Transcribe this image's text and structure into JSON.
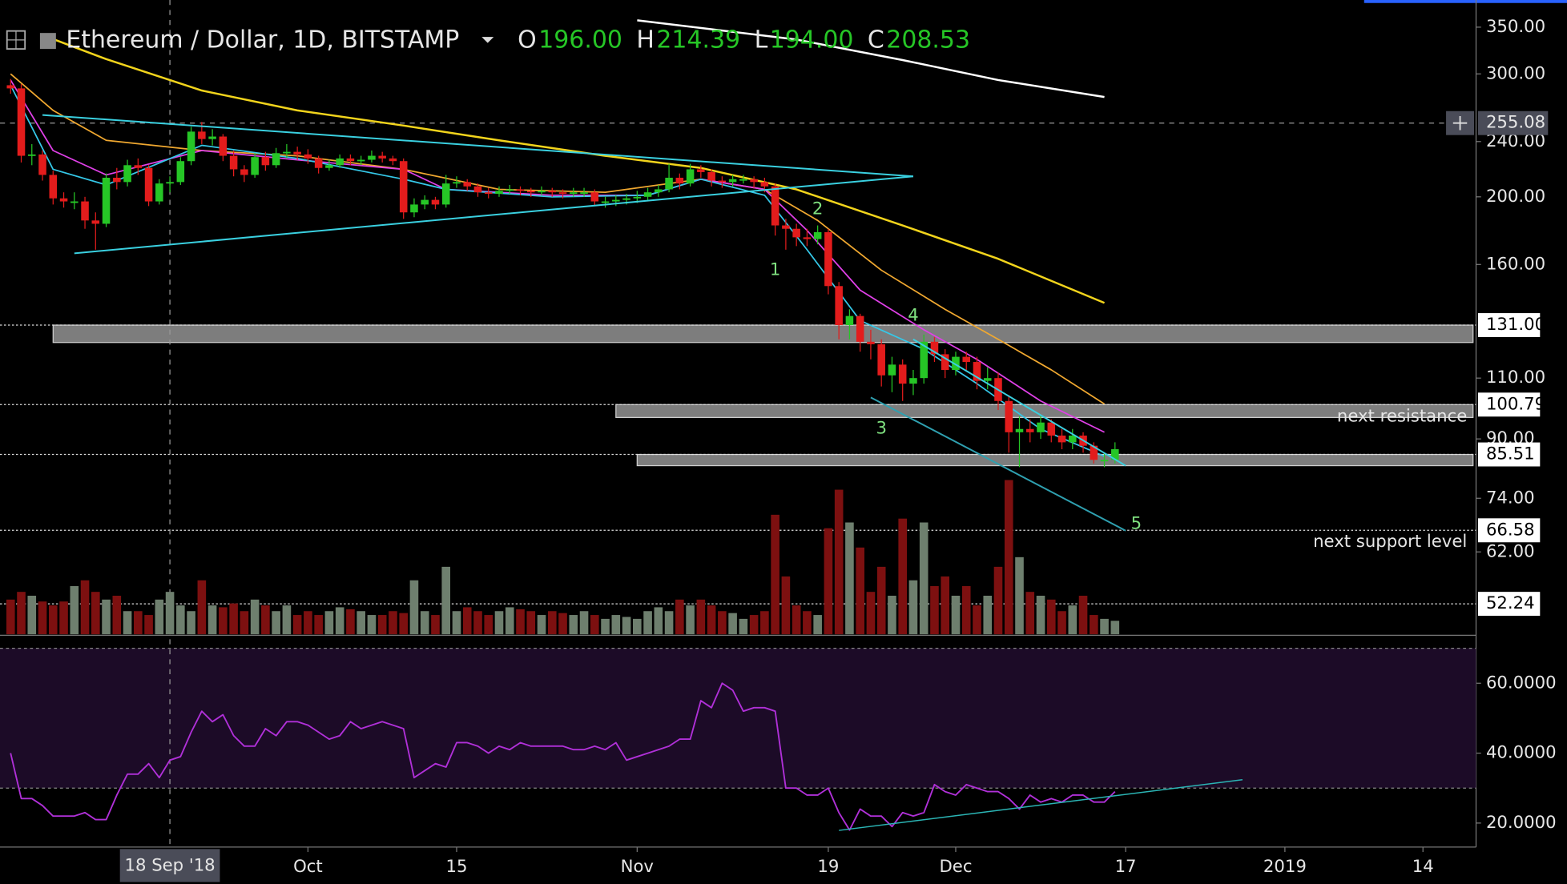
{
  "chart_data": {
    "type": "candlestick",
    "title": "Ethereum / Dollar, 1D, BITSTAMP",
    "ohlc": [
      {
        "key": "O",
        "text": "196.00"
      },
      {
        "key": "H",
        "text": "214.39"
      },
      {
        "key": "L",
        "text": "194.00"
      },
      {
        "key": "C",
        "text": "208.53"
      }
    ],
    "log_scale": true,
    "xlim": [
      "2018-09-02",
      "2019-01-19"
    ],
    "xticks": [
      {
        "value": "2018-10-01",
        "label": "Oct"
      },
      {
        "value": "2018-10-15",
        "label": "15"
      },
      {
        "value": "2018-11-01",
        "label": "Nov"
      },
      {
        "value": "2018-11-19",
        "label": "19"
      },
      {
        "value": "2018-12-01",
        "label": "Dec"
      },
      {
        "value": "2018-12-17",
        "label": "17"
      },
      {
        "value": "2019-01-01",
        "label": "2019"
      },
      {
        "value": "2019-01-14",
        "label": "14"
      }
    ],
    "ylim": [
      47.25,
      370.4
    ],
    "yticks": [
      {
        "value": 350,
        "label": "350.00"
      },
      {
        "value": 300,
        "label": "300.00"
      },
      {
        "value": 240,
        "label": "240.00"
      },
      {
        "value": 200,
        "label": "200.00"
      },
      {
        "value": 160,
        "label": "160.00"
      },
      {
        "value": 110,
        "label": "110.00"
      },
      {
        "value": 90,
        "label": "90.00"
      },
      {
        "value": 74,
        "label": "74.00"
      },
      {
        "value": 62,
        "label": "62.00"
      }
    ],
    "x": [
      "2018-09-03",
      "2018-09-04",
      "2018-09-05",
      "2018-09-06",
      "2018-09-07",
      "2018-09-08",
      "2018-09-09",
      "2018-09-10",
      "2018-09-11",
      "2018-09-12",
      "2018-09-13",
      "2018-09-14",
      "2018-09-15",
      "2018-09-16",
      "2018-09-17",
      "2018-09-18",
      "2018-09-19",
      "2018-09-20",
      "2018-09-21",
      "2018-09-22",
      "2018-09-23",
      "2018-09-24",
      "2018-09-25",
      "2018-09-26",
      "2018-09-27",
      "2018-09-28",
      "2018-09-29",
      "2018-09-30",
      "2018-10-01",
      "2018-10-02",
      "2018-10-03",
      "2018-10-04",
      "2018-10-05",
      "2018-10-06",
      "2018-10-07",
      "2018-10-08",
      "2018-10-09",
      "2018-10-10",
      "2018-10-11",
      "2018-10-12",
      "2018-10-13",
      "2018-10-14",
      "2018-10-15",
      "2018-10-16",
      "2018-10-17",
      "2018-10-18",
      "2018-10-19",
      "2018-10-20",
      "2018-10-21",
      "2018-10-22",
      "2018-10-23",
      "2018-10-24",
      "2018-10-25",
      "2018-10-26",
      "2018-10-27",
      "2018-10-28",
      "2018-10-29",
      "2018-10-30",
      "2018-10-31",
      "2018-11-01",
      "2018-11-02",
      "2018-11-03",
      "2018-11-04",
      "2018-11-05",
      "2018-11-06",
      "2018-11-07",
      "2018-11-08",
      "2018-11-09",
      "2018-11-10",
      "2018-11-11",
      "2018-11-12",
      "2018-11-13",
      "2018-11-14",
      "2018-11-15",
      "2018-11-16",
      "2018-11-17",
      "2018-11-18",
      "2018-11-19",
      "2018-11-20",
      "2018-11-21",
      "2018-11-22",
      "2018-11-23",
      "2018-11-24",
      "2018-11-25",
      "2018-11-26",
      "2018-11-27",
      "2018-11-28",
      "2018-11-29",
      "2018-11-30",
      "2018-12-01",
      "2018-12-02",
      "2018-12-03",
      "2018-12-04",
      "2018-12-05",
      "2018-12-06",
      "2018-12-07",
      "2018-12-08",
      "2018-12-09",
      "2018-12-10",
      "2018-12-11",
      "2018-12-12",
      "2018-12-13",
      "2018-12-14",
      "2018-12-15",
      "2018-12-16"
    ],
    "open": [
      289,
      286,
      229,
      230,
      215,
      199,
      197,
      197,
      185,
      183,
      213,
      210,
      222,
      220,
      197,
      209,
      210,
      225,
      248,
      242,
      244,
      229,
      219,
      215,
      228,
      222,
      231,
      232,
      230,
      227,
      220,
      222,
      227,
      225,
      226,
      229,
      227,
      225,
      190,
      195,
      198,
      195,
      209,
      210,
      207,
      203,
      202,
      204,
      205,
      204,
      203,
      204,
      203,
      202,
      203,
      203,
      197,
      197,
      198,
      199,
      200,
      203,
      205,
      213,
      209,
      219,
      217,
      211,
      210,
      212,
      212,
      210,
      207,
      182,
      180,
      175,
      174,
      178,
      149,
      131,
      135,
      124,
      123,
      111,
      115,
      108,
      110,
      124,
      119,
      113,
      118,
      116,
      109,
      110,
      102,
      92,
      93,
      92,
      95,
      91,
      89,
      91,
      88,
      84,
      84
    ],
    "high": [
      295,
      290,
      238,
      233,
      218,
      203,
      203,
      200,
      190,
      216,
      220,
      226,
      227,
      222,
      212,
      214,
      228,
      252,
      256,
      250,
      246,
      233,
      222,
      231,
      232,
      235,
      238,
      236,
      234,
      229,
      226,
      230,
      230,
      229,
      233,
      232,
      229,
      227,
      199,
      201,
      200,
      215,
      214,
      212,
      209,
      206,
      207,
      208,
      207,
      206,
      207,
      206,
      205,
      206,
      206,
      205,
      200,
      201,
      202,
      204,
      206,
      208,
      223,
      216,
      223,
      222,
      219,
      214,
      215,
      215,
      214,
      213,
      209,
      186,
      183,
      180,
      182,
      180,
      151,
      138,
      136,
      129,
      125,
      118,
      117,
      113,
      127,
      126,
      121,
      120,
      120,
      118,
      114,
      112,
      104,
      97,
      96,
      97,
      96,
      93,
      93,
      92,
      89,
      86,
      89
    ],
    "low": [
      281,
      224,
      222,
      211,
      195,
      193,
      192,
      180,
      168,
      181,
      205,
      207,
      215,
      194,
      195,
      203,
      208,
      222,
      238,
      237,
      225,
      214,
      210,
      213,
      218,
      220,
      227,
      226,
      223,
      216,
      218,
      220,
      222,
      222,
      224,
      224,
      222,
      186,
      187,
      192,
      192,
      193,
      206,
      204,
      200,
      199,
      200,
      202,
      201,
      200,
      201,
      200,
      199,
      200,
      200,
      194,
      193,
      194,
      195,
      196,
      198,
      200,
      203,
      205,
      207,
      213,
      207,
      206,
      207,
      209,
      206,
      203,
      176,
      168,
      170,
      170,
      171,
      145,
      125,
      125,
      120,
      117,
      107,
      105,
      102,
      104,
      108,
      116,
      110,
      111,
      113,
      106,
      106,
      99,
      86,
      82,
      89,
      90,
      89,
      87,
      87,
      86,
      83,
      82,
      83
    ],
    "close": [
      286,
      229,
      230,
      215,
      199,
      197,
      197,
      185,
      183,
      213,
      210,
      222,
      220,
      197,
      209,
      210,
      225,
      248,
      242,
      244,
      229,
      219,
      215,
      228,
      222,
      231,
      232,
      230,
      227,
      220,
      222,
      227,
      225,
      226,
      229,
      227,
      225,
      190,
      195,
      198,
      195,
      209,
      210,
      207,
      203,
      202,
      204,
      205,
      204,
      203,
      204,
      203,
      202,
      203,
      203,
      197,
      197,
      198,
      199,
      200,
      203,
      205,
      213,
      209,
      219,
      217,
      211,
      210,
      212,
      212,
      210,
      207,
      182,
      180,
      175,
      174,
      178,
      149,
      131,
      135,
      124,
      123,
      111,
      115,
      108,
      110,
      124,
      119,
      113,
      118,
      116,
      109,
      110,
      102,
      92,
      93,
      92,
      95,
      91,
      89,
      91,
      88,
      84,
      84,
      87
    ],
    "up_color": "#26c626",
    "down_color": "#e31c1c",
    "volume": {
      "vlim": [
        0,
        100
      ],
      "up_color": "#6e7f6e",
      "down_color": "#7d1010",
      "values": [
        18,
        22,
        20,
        17,
        15,
        17,
        25,
        28,
        22,
        18,
        20,
        12,
        12,
        10,
        18,
        22,
        15,
        12,
        28,
        15,
        14,
        16,
        12,
        18,
        15,
        12,
        15,
        10,
        12,
        10,
        12,
        14,
        13,
        12,
        10,
        10,
        12,
        11,
        28,
        12,
        10,
        35,
        12,
        14,
        12,
        10,
        12,
        14,
        13,
        12,
        10,
        12,
        11,
        10,
        12,
        10,
        8,
        10,
        9,
        8,
        12,
        14,
        12,
        18,
        15,
        18,
        15,
        12,
        11,
        8,
        10,
        12,
        62,
        30,
        15,
        12,
        10,
        55,
        75,
        58,
        45,
        22,
        35,
        20,
        60,
        28,
        58,
        25,
        30,
        20,
        25,
        15,
        20,
        35,
        80,
        40,
        22,
        20,
        18,
        12,
        15,
        20,
        10,
        8,
        7
      ]
    },
    "moving_averages": [
      {
        "color": "#ffffff",
        "x": [
          "2018-11-01",
          "2018-11-16",
          "2018-11-26",
          "2018-12-05",
          "2018-12-15"
        ],
        "values": [
          358,
          336,
          314,
          294,
          278
        ]
      },
      {
        "color": "#f2d41c",
        "x": [
          "2018-09-06",
          "2018-09-12",
          "2018-09-21",
          "2018-09-30",
          "2018-10-10",
          "2018-10-19",
          "2018-10-29",
          "2018-11-07",
          "2018-11-16",
          "2018-11-26",
          "2018-12-05",
          "2018-12-15"
        ],
        "values": [
          341,
          315,
          284,
          266,
          253,
          241,
          229,
          220,
          205,
          182,
          163,
          141
        ]
      },
      {
        "color": "#f0a830",
        "x": [
          "2018-09-03",
          "2018-09-07",
          "2018-09-12",
          "2018-09-21",
          "2018-09-30",
          "2018-10-10",
          "2018-10-19",
          "2018-10-29",
          "2018-11-07",
          "2018-11-13",
          "2018-11-18",
          "2018-11-24",
          "2018-11-30",
          "2018-12-05",
          "2018-12-10",
          "2018-12-15"
        ],
        "values": [
          300,
          266,
          241,
          233,
          229,
          219,
          205,
          203,
          212,
          205,
          185,
          157,
          138,
          125,
          113,
          101
        ]
      },
      {
        "color": "#e040e8",
        "x": [
          "2018-09-03",
          "2018-09-07",
          "2018-09-12",
          "2018-09-21",
          "2018-09-30",
          "2018-10-10",
          "2018-10-14",
          "2018-10-24",
          "2018-11-02",
          "2018-11-07",
          "2018-11-13",
          "2018-11-17",
          "2018-11-22",
          "2018-11-28",
          "2018-12-03",
          "2018-12-09",
          "2018-12-15"
        ],
        "values": [
          294,
          233,
          215,
          233,
          226,
          219,
          205,
          201,
          201,
          212,
          205,
          179,
          147,
          129,
          117,
          102,
          92
        ]
      },
      {
        "color": "#35c8e8",
        "x": [
          "2018-09-03",
          "2018-09-07",
          "2018-09-12",
          "2018-09-21",
          "2018-09-30",
          "2018-10-10",
          "2018-10-14",
          "2018-10-24",
          "2018-11-02",
          "2018-11-07",
          "2018-11-13",
          "2018-11-17",
          "2018-11-22",
          "2018-11-28",
          "2018-12-03",
          "2018-12-09",
          "2018-12-15"
        ],
        "values": [
          289,
          219,
          208,
          237,
          227,
          212,
          205,
          200,
          201,
          212,
          201,
          168,
          133,
          121,
          108,
          93,
          85
        ]
      }
    ],
    "levels": [
      {
        "value": 131,
        "label": "131.00"
      },
      {
        "value": 100.79,
        "label": "100.79",
        "note": "next resistance"
      },
      {
        "value": 85.51,
        "label": "85.51"
      },
      {
        "value": 66.58,
        "label": "66.58",
        "note": "next support level"
      },
      {
        "value": 52.24,
        "label": "52.24"
      }
    ],
    "zones": [
      {
        "from": "2018-09-07",
        "low": 123.7,
        "high": 131
      },
      {
        "from": "2018-10-30",
        "low": 96.6,
        "high": 100.79
      },
      {
        "from": "2018-11-01",
        "low": 82.4,
        "high": 85.51
      }
    ],
    "trendlines": [
      {
        "color": "#3ad0e0",
        "x": [
          "2018-09-06",
          "2018-11-27"
        ],
        "y": [
          262,
          214
        ]
      },
      {
        "color": "#3ad0e0",
        "x": [
          "2018-09-09",
          "2018-11-27"
        ],
        "y": [
          166,
          214
        ]
      },
      {
        "color": "#3ad0e0",
        "x": [
          "2018-11-27",
          "2018-12-17"
        ],
        "y": [
          125,
          82.4
        ]
      },
      {
        "color": "#2fa0b0",
        "x": [
          "2018-11-23",
          "2018-12-17"
        ],
        "y": [
          103.2,
          66.5
        ]
      }
    ],
    "waves": [
      {
        "label": "1",
        "x": "2018-11-14",
        "y": 157
      },
      {
        "label": "2",
        "x": "2018-11-18",
        "y": 192
      },
      {
        "label": "3",
        "x": "2018-11-24",
        "y": 93
      },
      {
        "label": "4",
        "x": "2018-11-27",
        "y": 135
      },
      {
        "label": "5",
        "x": "2018-12-18",
        "y": 68
      }
    ],
    "crosshair": {
      "x": {
        "value": "2018-09-18",
        "label": "18 Sep '18"
      },
      "y": {
        "value": 255.08,
        "label": "255.08"
      }
    },
    "rsi": {
      "color": "#b030d8",
      "ylim": [
        13.14,
        73.43
      ],
      "yticks": [
        {
          "value": 60,
          "label": "60.0000"
        },
        {
          "value": 40,
          "label": "40.0000"
        },
        {
          "value": 20,
          "label": "20.0000"
        }
      ],
      "bands": [
        30,
        70
      ],
      "values": [
        40,
        27,
        27,
        25,
        22,
        22,
        22,
        23,
        21,
        21,
        28,
        34,
        34,
        37,
        33,
        38,
        39,
        46,
        52,
        49,
        51,
        45,
        42,
        42,
        47,
        45,
        49,
        49,
        48,
        46,
        44,
        45,
        49,
        47,
        48,
        49,
        48,
        47,
        33,
        35,
        37,
        36,
        43,
        43,
        42,
        40,
        42,
        41,
        43,
        42,
        42,
        42,
        42,
        41,
        41,
        42,
        41,
        43,
        38,
        39,
        40,
        41,
        42,
        44,
        44,
        55,
        53,
        60,
        58,
        52,
        53,
        53,
        52,
        30,
        30,
        28,
        28,
        30,
        23,
        18,
        24,
        22,
        22,
        19,
        23,
        22,
        23,
        31,
        29,
        28,
        31,
        30,
        29,
        29,
        27,
        24,
        28,
        26,
        27,
        26,
        28,
        28,
        26,
        26,
        29
      ],
      "trendline": {
        "color": "#2bb5b5",
        "x": [
          "2018-11-20",
          "2018-12-28"
        ],
        "y": [
          17.9,
          32.4
        ]
      }
    }
  }
}
